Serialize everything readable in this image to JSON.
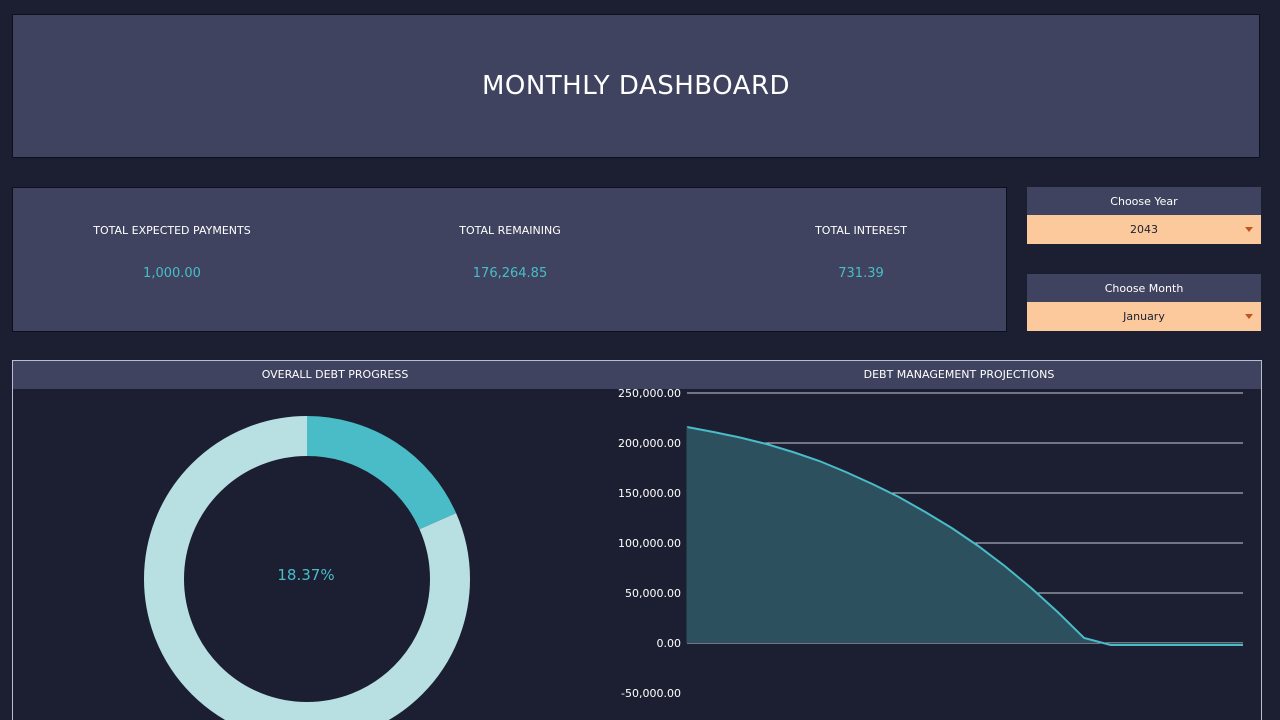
{
  "header": {
    "title": "MONTHLY DASHBOARD"
  },
  "kpis": [
    {
      "label": "TOTAL EXPECTED PAYMENTS",
      "value": "1,000.00"
    },
    {
      "label": "TOTAL REMAINING",
      "value": "176,264.85"
    },
    {
      "label": "TOTAL INTEREST",
      "value": "731.39"
    }
  ],
  "year_selector": {
    "label": "Choose Year",
    "value": "2043"
  },
  "month_selector": {
    "label": "Choose Month",
    "value": "January"
  },
  "colors": {
    "accent": "#49bcc8",
    "donut_remaining": "#b8e0e3",
    "area_fill": "#2d505f",
    "area_line": "#49bcc8",
    "selector_bg": "#fbc99b"
  },
  "chart_data": [
    {
      "type": "pie",
      "title": "OVERALL DEBT PROGRESS",
      "center_label": "18.37%",
      "values": [
        18.37,
        81.63
      ]
    },
    {
      "type": "area",
      "title": "DEBT MANAGEMENT PROJECTIONS",
      "ylim": [
        -50000,
        250000
      ],
      "yticks": [
        -50000,
        0,
        50000,
        100000,
        150000,
        200000,
        250000
      ],
      "ytick_labels": [
        "-50,000.00",
        "0.00",
        "50,000.00",
        "100,000.00",
        "150,000.00",
        "200,000.00",
        "250,000.00"
      ],
      "grid": true,
      "x": [
        0,
        1,
        2,
        3,
        4,
        5,
        6,
        7,
        8,
        9,
        10,
        11,
        12,
        13,
        14,
        15,
        16,
        17,
        18,
        19,
        20,
        21
      ],
      "values": [
        216000,
        211000,
        205500,
        199000,
        191000,
        182000,
        171000,
        159000,
        146000,
        131000,
        115000,
        97000,
        77000,
        55000,
        31000,
        5000,
        -2000,
        -2000,
        -2000,
        -2000,
        -2000,
        -2000
      ]
    }
  ]
}
